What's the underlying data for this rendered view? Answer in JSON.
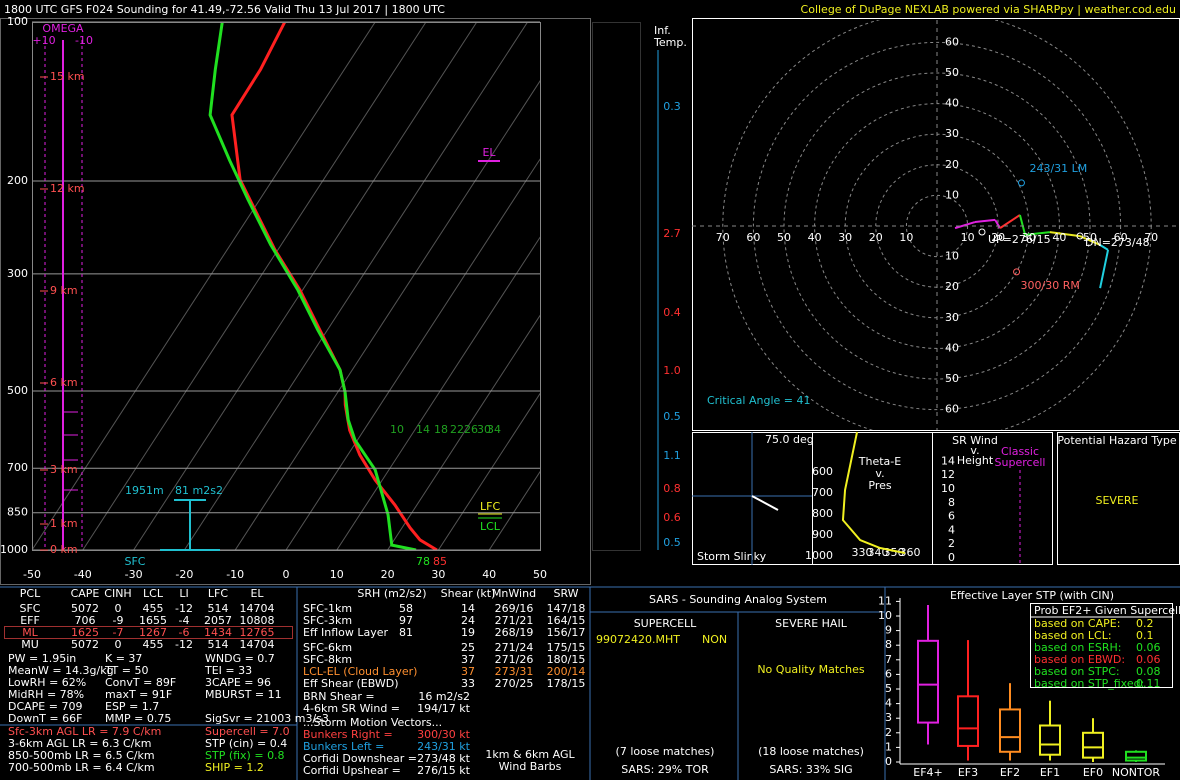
{
  "header": {
    "left": "1800 UTC GFS F024 Sounding for 41.49,-72.56 Valid  Thu 13 Jul 2017 | 1800 UTC",
    "right": "College of DuPage NEXLAB powered via SHARPpy | weather.cod.edu"
  },
  "skewt": {
    "pressure_ticks": [
      100,
      200,
      300,
      500,
      700,
      850,
      1000
    ],
    "temperature_ticks": [
      -50,
      -40,
      -30,
      -20,
      -10,
      0,
      10,
      20,
      30,
      40,
      50
    ],
    "km_labels": [
      "15 km",
      "12 km",
      "9 km",
      "6 km",
      "3 km",
      "1 km",
      "0 km"
    ],
    "omega": {
      "title": "OMEGA",
      "left": "+10",
      "right": "-10"
    },
    "labels": {
      "el": "EL",
      "lfc": "LFC",
      "lcl": "LCL",
      "sfc": "SFC",
      "sfc_dew_f": "78",
      "sfc_temp_f": "85",
      "inflow_height": "1951m",
      "inflow_srh": "81 m2s2"
    },
    "mixing_ratio_labels": [
      "10",
      "14",
      "18",
      "22",
      "26",
      "30",
      "34"
    ],
    "temperature": {
      "color": "#ff2020",
      "pressure": [
        1000,
        957,
        908,
        822,
        737,
        661,
        593,
        531,
        502,
        456,
        383,
        322,
        270,
        227,
        199,
        150,
        123,
        100
      ],
      "values": [
        29.7,
        25.1,
        21.6,
        15.7,
        8.6,
        2.4,
        -2.8,
        -6.9,
        -8.6,
        -12.4,
        -21.5,
        -30.5,
        -40.6,
        -49.6,
        -56.4,
        -66.3,
        -66.5,
        -67.8
      ]
    },
    "dewpoint": {
      "color": "#20e020",
      "pressure": [
        1000,
        979,
        858,
        705,
        619,
        567,
        502,
        456,
        383,
        322,
        264,
        217,
        183,
        150,
        123,
        100
      ],
      "values": [
        25.6,
        20.2,
        15.6,
        7.3,
        -0.5,
        -4.4,
        -8.6,
        -12.4,
        -21.9,
        -30.9,
        -42.1,
        -52.3,
        -60.9,
        -70.6,
        -75.4,
        -80.1
      ]
    }
  },
  "inferred_temp": {
    "title": [
      "Inf.",
      "Temp."
    ],
    "labels": [
      "0.3",
      "2.7",
      "0.4",
      "1.0",
      "0.5",
      "1.1",
      "0.8",
      "0.6",
      "0.5"
    ]
  },
  "hodograph": {
    "rings": [
      10,
      20,
      30,
      40,
      50,
      60,
      70
    ],
    "u": [
      5.9,
      12.4,
      19.0,
      20.6,
      27.1,
      28.8,
      36.9,
      46.7,
      53.3,
      55.9,
      53.3
    ],
    "v": [
      -0.7,
      1.3,
      2.0,
      -0.7,
      3.6,
      -2.9,
      -2.0,
      -3.3,
      -6.2,
      -7.8,
      -20.3
    ],
    "segment_colors": [
      "#e020e0",
      "#e020e0",
      "#e020e0",
      "#ff3030",
      "#20e020",
      "#20e020",
      "#e8e820",
      "#e8e820",
      "#20d0e0",
      "#20d0e0"
    ],
    "left_mover": {
      "u": 27.6,
      "v": 14.1,
      "label": "243/31 LM"
    },
    "right_mover": {
      "u": 26,
      "v": -15,
      "label": "300/30 RM"
    },
    "labels": {
      "downshear": "DN=273/48",
      "upshear": "UP=276/15",
      "critical_angle": "Critical Angle = 41"
    }
  },
  "slinky": {
    "angle": "75.0 deg",
    "title": "Storm Slinky"
  },
  "theta_e": {
    "title": [
      "Theta-E",
      "v.",
      "Pres"
    ],
    "pressure_ticks": [
      600,
      700,
      800,
      900,
      1000
    ],
    "theta_ticks": [
      330,
      340,
      350,
      360
    ],
    "pressure": [
      410,
      686,
      829,
      924,
      962,
      986
    ],
    "values": [
      326.9,
      319.4,
      318.1,
      328.8,
      341.3,
      356.9
    ]
  },
  "sr_wind": {
    "title": [
      "SR Wind",
      "v.",
      "Height"
    ],
    "heading": [
      "Classic",
      "Supercell"
    ],
    "height_ticks": [
      0,
      2,
      4,
      6,
      8,
      10,
      12,
      14
    ]
  },
  "hazard": {
    "title": "Potential Hazard Type",
    "value": "SEVERE"
  },
  "thermo": {
    "header": [
      "PCL",
      "CAPE",
      "CINH",
      "LCL",
      "LI",
      "LFC",
      "EL"
    ],
    "rows": [
      [
        "SFC",
        "5072",
        "0",
        "455",
        "-12",
        "514",
        "14704"
      ],
      [
        "EFF",
        "706",
        "-9",
        "1655",
        "-4",
        "2057",
        "10808"
      ],
      [
        "ML",
        "1625",
        "-7",
        "1267",
        "-6",
        "1434",
        "12765"
      ],
      [
        "MU",
        "5072",
        "0",
        "455",
        "-12",
        "514",
        "14704"
      ]
    ],
    "col1": [
      "PW = 1.95in",
      "MeanW = 14.3g/kg",
      "LowRH = 62%",
      "MidRH = 78%",
      "DCAPE = 709",
      "DownT = 66F"
    ],
    "col2": [
      "K = 37",
      "TT = 50",
      "ConvT = 89F",
      "maxT = 91F",
      "ESP = 1.7",
      "MMP = 0.75"
    ],
    "col3": [
      "WNDG = 0.7",
      "TEI = 33",
      "3CAPE = 96",
      "MBURST = 11",
      "SigSvr = 21003 m3/s3"
    ],
    "lapse_rates": [
      "Sfc-3km AGL LR = 7.9 C/km",
      "3-6km AGL LR = 6.3 C/km",
      "850-500mb LR = 6.5 C/km",
      "700-500mb LR = 6.4 C/km"
    ],
    "composites": [
      "Supercell = 7.0",
      "STP (cin) = 0.4",
      "STP (fix) = 0.8",
      "SHIP = 1.2"
    ]
  },
  "kinematics": {
    "header": [
      "SRH (m2/s2)",
      "Shear (kt)",
      "MnWind",
      "SRW"
    ],
    "srh_rows": [
      [
        "SFC-1km",
        "58",
        "14",
        "269/16",
        "147/18"
      ],
      [
        "SFC-3km",
        "97",
        "24",
        "271/21",
        "164/15"
      ],
      [
        "Eff Inflow Layer",
        "81",
        "19",
        "268/19",
        "156/17"
      ]
    ],
    "shear_rows": [
      [
        "SFC-6km",
        "25",
        "271/24",
        "175/15"
      ],
      [
        "SFC-8km",
        "37",
        "271/26",
        "180/15"
      ],
      [
        "LCL-EL (Cloud Layer)",
        "37",
        "273/31",
        "200/14"
      ],
      [
        "Eff Shear (EBWD)",
        "33",
        "270/25",
        "178/15"
      ]
    ],
    "extra": [
      [
        "BRN Shear = ",
        "16 m2/s2"
      ],
      [
        "4-6km SR Wind = ",
        "194/17 kt"
      ]
    ],
    "motion_title": "...Storm Motion Vectors...",
    "motion": [
      [
        "Bunkers Right = ",
        "300/30 kt"
      ],
      [
        "Bunkers Left = ",
        "243/31 kt"
      ],
      [
        "Corfidi Downshear = ",
        "273/48 kt"
      ],
      [
        "Corfidi Upshear = ",
        "276/15 kt"
      ]
    ],
    "barbs": [
      "1km & 6km AGL",
      "Wind Barbs"
    ]
  },
  "sars": {
    "title": "SARS - Sounding Analog System",
    "supercell": "SUPERCELL",
    "hail": "SEVERE HAIL",
    "match": "99072420.MHT",
    "match_type": "NON",
    "hail_match": "No Quality Matches",
    "supercell_loose": "(7 loose matches)",
    "hail_loose": "(18 loose matches)",
    "tor": "SARS: 29% TOR",
    "sig": "SARS: 33% SIG"
  },
  "stp": {
    "title": "Effective Layer STP (with CIN)",
    "yticks": [
      0,
      1,
      2,
      3,
      4,
      5,
      6,
      7,
      8,
      9,
      10,
      11
    ],
    "categories": [
      "EF4+",
      "EF3",
      "EF2",
      "EF1",
      "EF0",
      "NONTOR"
    ],
    "colors": [
      "#e020e0",
      "#ff2020",
      "#ff8c20",
      "#f0f020",
      "#f0f020",
      "#20e020"
    ],
    "boxes": [
      {
        "low": 1.2,
        "q1": 2.7,
        "median": 5.3,
        "q3": 8.3,
        "high": 10.75
      },
      {
        "low": 0.1,
        "q1": 1.1,
        "median": 2.3,
        "q3": 4.5,
        "high": 8.35
      },
      {
        "low": 0.1,
        "q1": 0.7,
        "median": 1.7,
        "q3": 3.6,
        "high": 5.4
      },
      {
        "low": 0.1,
        "q1": 0.5,
        "median": 1.2,
        "q3": 2.5,
        "high": 4.2
      },
      {
        "low": 0,
        "q1": 0.3,
        "median": 1.0,
        "q3": 2.0,
        "high": 3.0
      },
      {
        "low": 0,
        "q1": 0.1,
        "median": 0.3,
        "q3": 0.7,
        "high": 0.8
      }
    ],
    "prob_title": "Prob EF2+ Given Supercell",
    "prob": [
      [
        "based on CAPE:",
        "0.2"
      ],
      [
        "based on LCL:",
        "0.1"
      ],
      [
        "based on ESRH:",
        "0.06"
      ],
      [
        "based on EBWD:",
        "0.06"
      ],
      [
        "based on STPC:",
        "0.08"
      ],
      [
        "based on STP_fixed:",
        "0.11"
      ]
    ],
    "prob_colors": [
      "#f0f020",
      "#f0f020",
      "#20e020",
      "#ff3030",
      "#20e020",
      "#20e020"
    ]
  }
}
